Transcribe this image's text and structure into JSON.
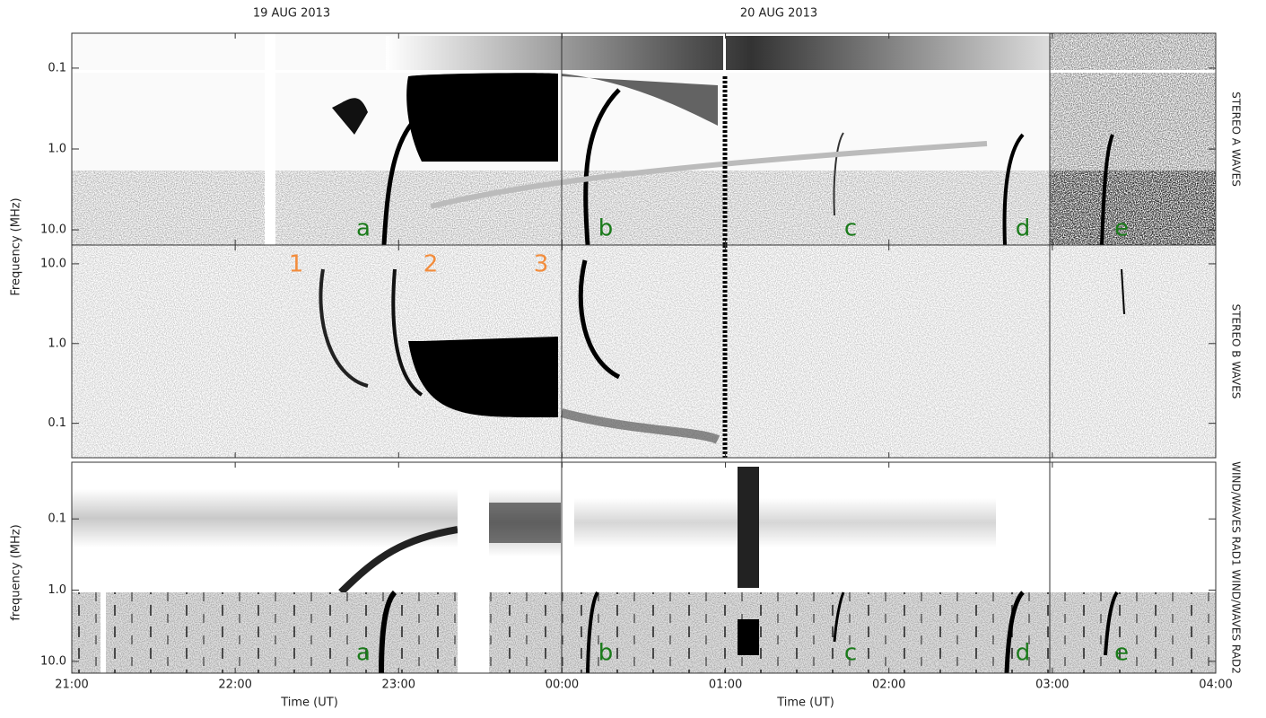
{
  "chart_data": {
    "type": "spectrogram",
    "dates": [
      "19 AUG 2013",
      "20 AUG 2013"
    ],
    "xlabel": "Time (UT)",
    "xlim": [
      21,
      28
    ],
    "xticks": [
      {
        "value": 21,
        "label": "21:00"
      },
      {
        "value": 22,
        "label": "22:00"
      },
      {
        "value": 23,
        "label": "23:00"
      },
      {
        "value": 24,
        "label": "00:00"
      },
      {
        "value": 25,
        "label": "01:00"
      },
      {
        "value": 26,
        "label": "02:00"
      },
      {
        "value": 27,
        "label": "03:00"
      },
      {
        "value": 28,
        "label": "04:00"
      }
    ],
    "ylabel": "Frequency (MHz)",
    "panels": [
      {
        "name": "STEREO A WAVES",
        "yscale": "log",
        "ylim": [
          15.4,
          0.037
        ],
        "yticks": [
          0.1,
          {
            "value": 1,
            "label": "1.0"
          },
          {
            "value": 10,
            "label": "10.0"
          }
        ],
        "event_labels": [
          "a",
          "b",
          "c",
          "d",
          "e"
        ]
      },
      {
        "name": "STEREO B WAVES",
        "yscale": "log",
        "ylim": [
          0.037,
          17.2
        ],
        "yticks": [
          {
            "value": 10,
            "label": "10.0"
          },
          {
            "value": 1,
            "label": "1.0"
          },
          0.1
        ],
        "event_labels": [
          "1",
          "2",
          "3"
        ]
      },
      {
        "name": "WIND/WAVES RAD1 WIND/WAVES RAD2",
        "ylabel": "frequency (MHz)",
        "yscale": "log",
        "ylim": [
          14.6,
          0.016
        ],
        "yticks": [
          0.1,
          {
            "value": 1,
            "label": "1.0"
          },
          {
            "value": 10,
            "label": "10.0"
          }
        ],
        "event_labels": [
          "a",
          "b",
          "c",
          "d",
          "e"
        ]
      }
    ]
  }
}
